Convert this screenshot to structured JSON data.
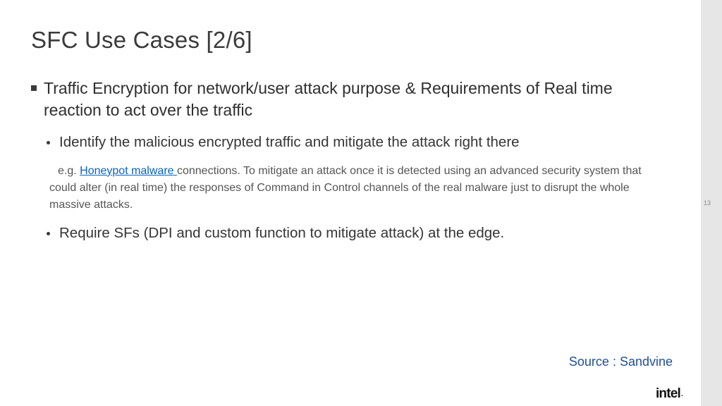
{
  "title": "SFC Use Cases [2/6]",
  "bullet_main": "Traffic Encryption for network/user attack purpose & Requirements of Real time reaction to act over the traffic",
  "bullet_sub1": "Identify the malicious encrypted traffic and mitigate the attack right there",
  "note_prefix": "e.g. ",
  "note_link_text": "Honeypot malware ",
  "note_rest": "connections. To mitigate an attack once it is detected using an advanced security system that could alter (in real time) the responses of Command in Control channels of the real malware just to disrupt the whole massive attacks.",
  "bullet_sub2": "Require SFs (DPI and custom function to mitigate attack) at the edge.",
  "source": "Source : Sandvine",
  "logo": "intel",
  "logo_dot": ".",
  "page_number": "13"
}
